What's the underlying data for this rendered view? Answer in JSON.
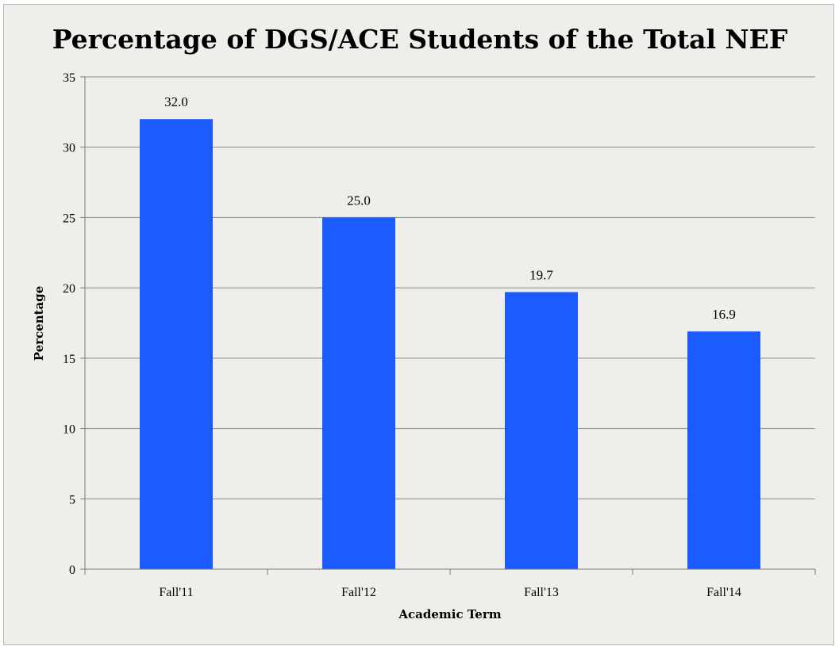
{
  "chart_data": {
    "type": "bar",
    "title": "Percentage of DGS/ACE Students of the Total NEF",
    "xlabel": "Academic Term",
    "ylabel": "Percentage",
    "categories": [
      "Fall'11",
      "Fall'12",
      "Fall'13",
      "Fall'14"
    ],
    "values": [
      32.0,
      25.0,
      19.7,
      16.9
    ],
    "data_labels": [
      "32.0",
      "25.0",
      "19.7",
      "16.9"
    ],
    "ylim": [
      0,
      35
    ],
    "yticks": [
      0,
      5,
      10,
      15,
      20,
      25,
      30,
      35
    ],
    "grid": true,
    "legend": "none",
    "bar_color": "#1a5cff"
  }
}
